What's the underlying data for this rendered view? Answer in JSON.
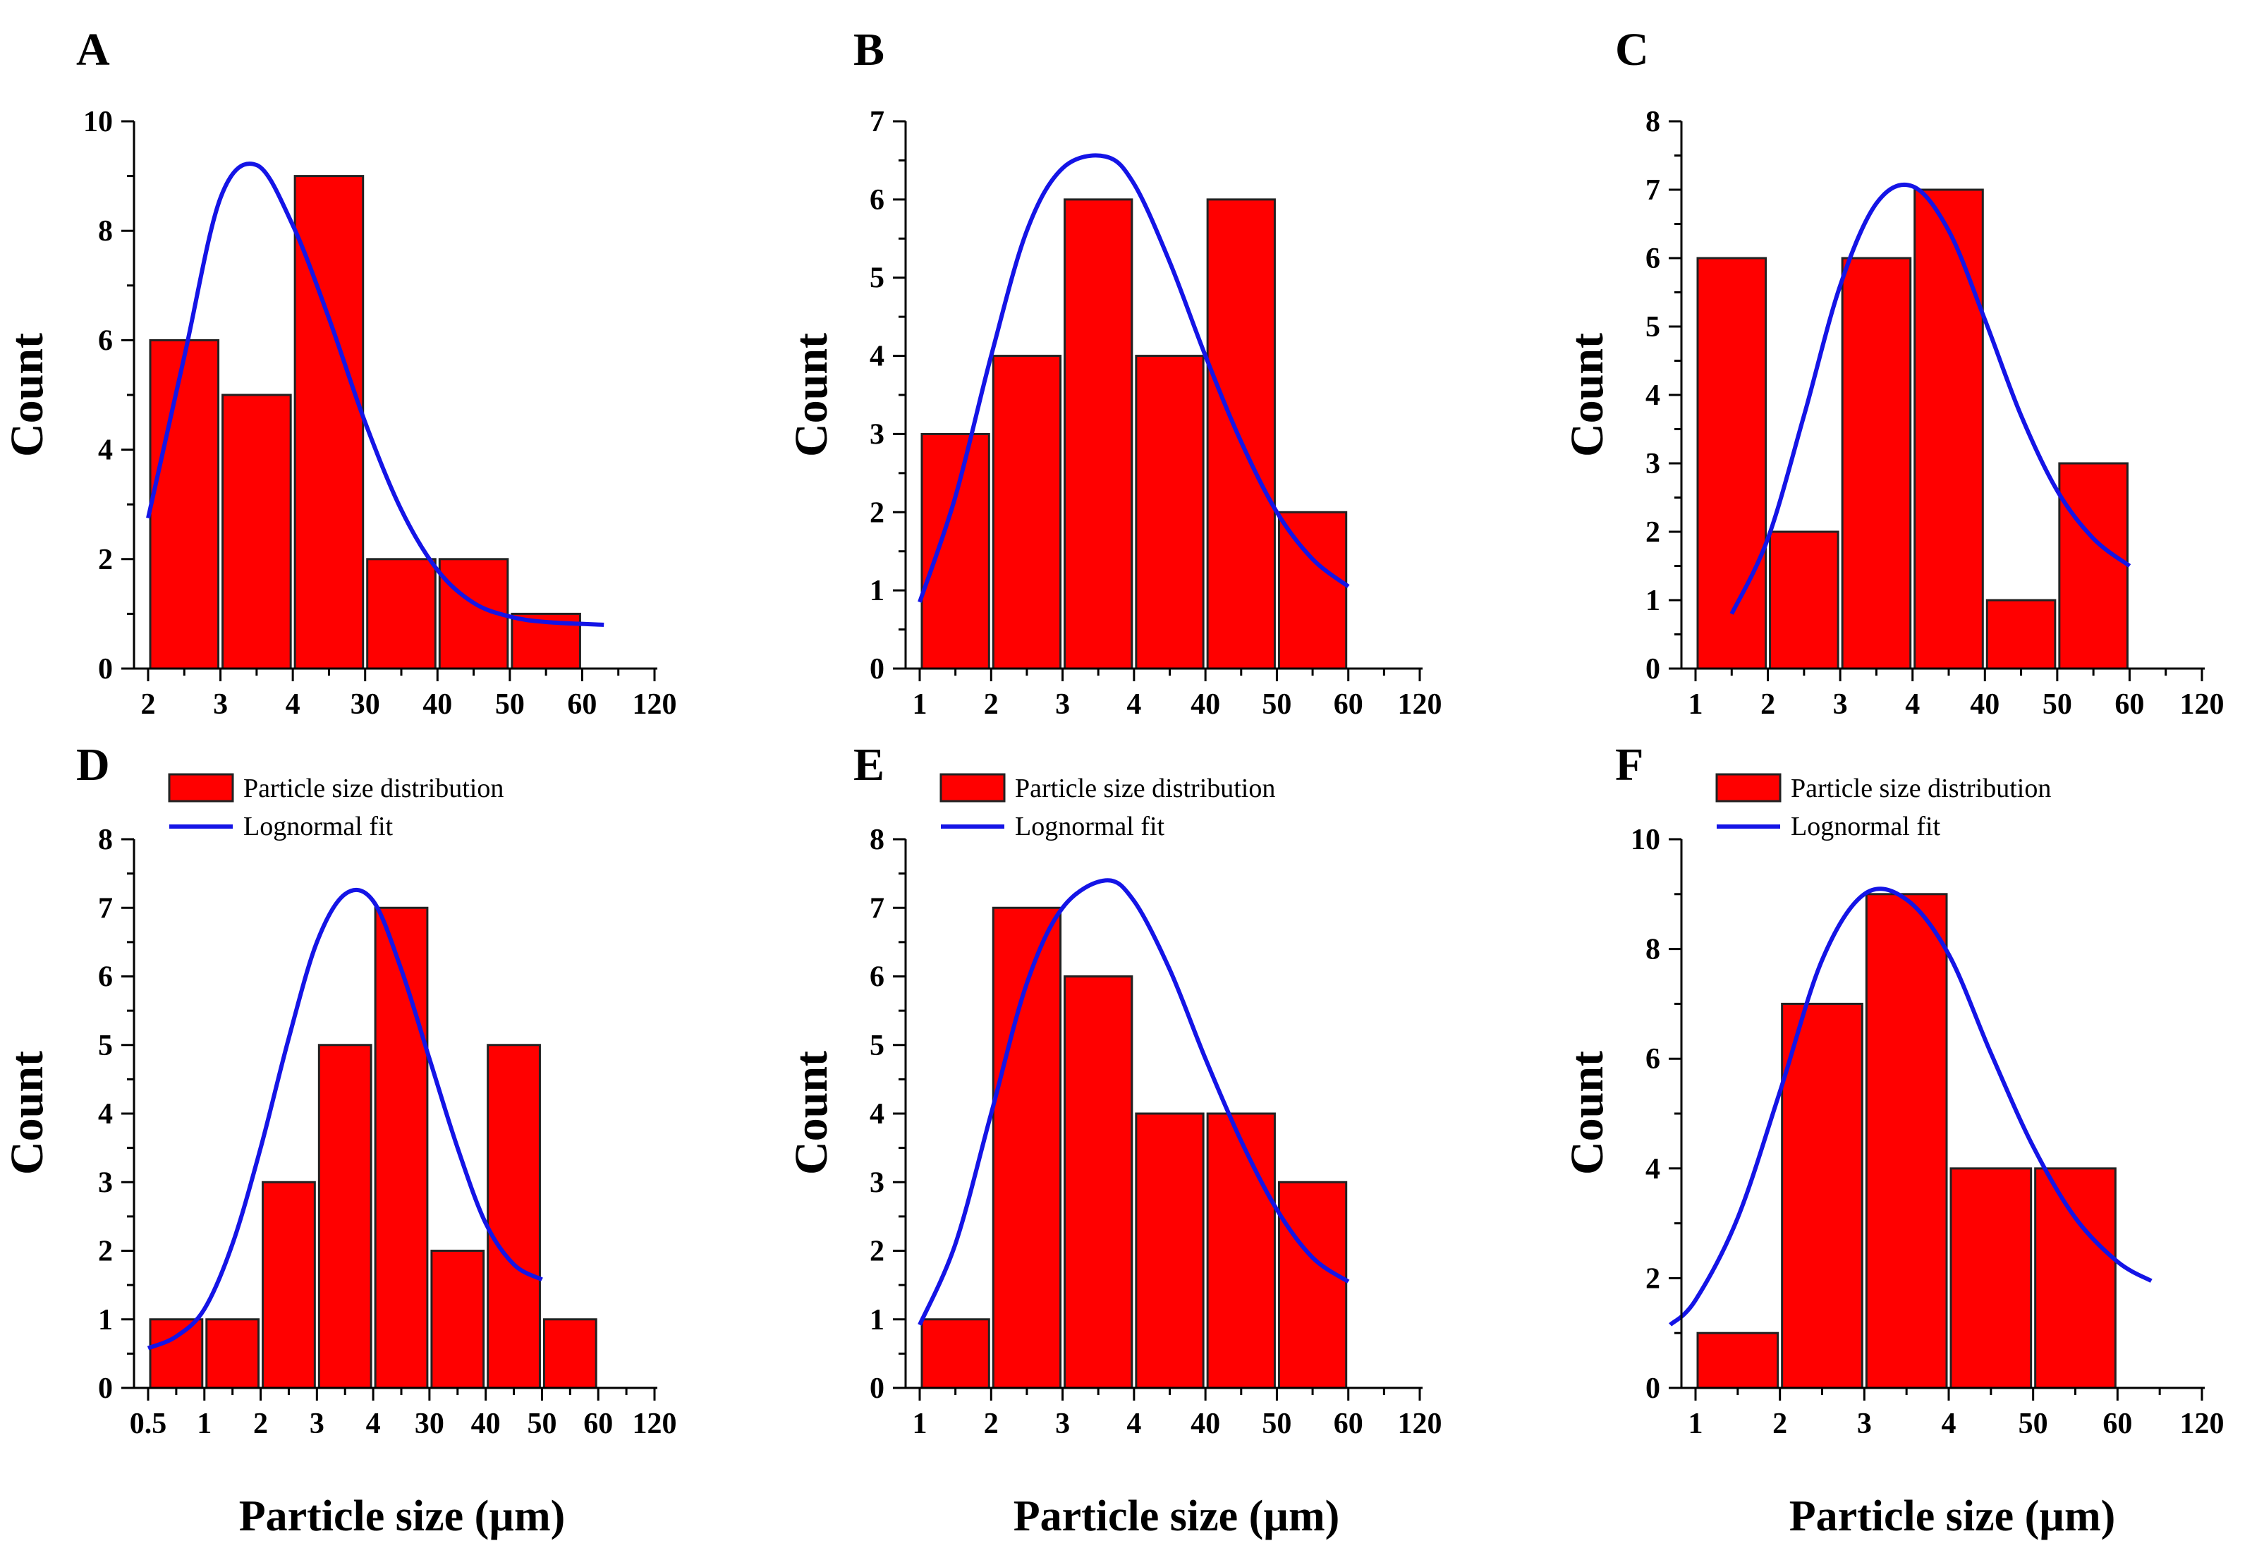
{
  "figure": {
    "xlabel": "Particle size (µm)",
    "ylabel": "Count",
    "legend": {
      "bar_label": "Particle size distribution",
      "line_label": "Lognormal fit"
    },
    "colors": {
      "bar": "#ff0000",
      "bar_edge": "#222222",
      "fit": "#1414e6",
      "axis": "#000000"
    }
  },
  "chart_data": [
    {
      "panel": "A",
      "type": "bar",
      "ylim": [
        0,
        10
      ],
      "yticks": [
        0,
        2,
        4,
        6,
        8,
        10
      ],
      "yminor_step": 1,
      "xticks": [
        "2",
        "3",
        "4",
        "30",
        "40",
        "50",
        "60",
        "120"
      ],
      "values": [
        6,
        5,
        9,
        2,
        2,
        1
      ],
      "fit": [
        [
          0.0,
          2.75
        ],
        [
          0.5,
          5.7
        ],
        [
          1.0,
          8.6
        ],
        [
          1.5,
          9.2
        ],
        [
          2.0,
          8.1
        ],
        [
          2.5,
          6.4
        ],
        [
          3.0,
          4.5
        ],
        [
          3.5,
          2.9
        ],
        [
          4.0,
          1.8
        ],
        [
          4.5,
          1.2
        ],
        [
          5.0,
          0.95
        ],
        [
          5.5,
          0.85
        ],
        [
          6.3,
          0.8
        ]
      ],
      "legend": false
    },
    {
      "panel": "B",
      "type": "bar",
      "ylim": [
        0,
        7
      ],
      "yticks": [
        0,
        1,
        2,
        3,
        4,
        5,
        6,
        7
      ],
      "yminor_step": 0.5,
      "xticks": [
        "1",
        "2",
        "3",
        "4",
        "40",
        "50",
        "60",
        "120"
      ],
      "values": [
        3,
        4,
        6,
        4,
        6,
        2
      ],
      "fit": [
        [
          0.0,
          0.85
        ],
        [
          0.5,
          2.2
        ],
        [
          1.0,
          4.0
        ],
        [
          1.5,
          5.6
        ],
        [
          2.0,
          6.4
        ],
        [
          2.6,
          6.55
        ],
        [
          3.0,
          6.2
        ],
        [
          3.5,
          5.2
        ],
        [
          4.0,
          4.0
        ],
        [
          4.5,
          2.9
        ],
        [
          5.0,
          2.0
        ],
        [
          5.5,
          1.4
        ],
        [
          6.0,
          1.05
        ]
      ],
      "legend": false
    },
    {
      "panel": "C",
      "type": "bar",
      "ylim": [
        0,
        8
      ],
      "yticks": [
        0,
        1,
        2,
        3,
        4,
        5,
        6,
        7,
        8
      ],
      "yminor_step": 0.5,
      "xticks": [
        "1",
        "2",
        "3",
        "4",
        "40",
        "50",
        "60",
        "120"
      ],
      "values": [
        6,
        2,
        6,
        7,
        1,
        3
      ],
      "fit": [
        [
          0.5,
          0.8
        ],
        [
          1.0,
          1.9
        ],
        [
          1.5,
          3.7
        ],
        [
          2.0,
          5.6
        ],
        [
          2.5,
          6.8
        ],
        [
          3.0,
          7.05
        ],
        [
          3.5,
          6.4
        ],
        [
          4.0,
          5.1
        ],
        [
          4.5,
          3.7
        ],
        [
          5.0,
          2.6
        ],
        [
          5.5,
          1.9
        ],
        [
          6.0,
          1.5
        ]
      ],
      "legend": false
    },
    {
      "panel": "D",
      "type": "bar",
      "ylim": [
        0,
        8
      ],
      "yticks": [
        0,
        1,
        2,
        3,
        4,
        5,
        6,
        7,
        8
      ],
      "yminor_step": 0.5,
      "xticks": [
        "0.5",
        "1",
        "2",
        "3",
        "4",
        "30",
        "40",
        "50",
        "60",
        "120"
      ],
      "values": [
        1,
        1,
        3,
        5,
        7,
        2,
        5,
        1
      ],
      "fit": [
        [
          0.0,
          0.58
        ],
        [
          0.5,
          0.75
        ],
        [
          1.0,
          1.15
        ],
        [
          1.5,
          2.1
        ],
        [
          2.0,
          3.5
        ],
        [
          2.5,
          5.1
        ],
        [
          3.0,
          6.5
        ],
        [
          3.5,
          7.2
        ],
        [
          4.0,
          7.1
        ],
        [
          4.5,
          6.1
        ],
        [
          5.0,
          4.8
        ],
        [
          5.5,
          3.5
        ],
        [
          6.0,
          2.4
        ],
        [
          6.5,
          1.8
        ],
        [
          7.0,
          1.58
        ]
      ],
      "legend": true
    },
    {
      "panel": "E",
      "type": "bar",
      "ylim": [
        0,
        8
      ],
      "yticks": [
        0,
        1,
        2,
        3,
        4,
        5,
        6,
        7,
        8
      ],
      "yminor_step": 0.5,
      "xticks": [
        "1",
        "2",
        "3",
        "4",
        "40",
        "50",
        "60",
        "120"
      ],
      "values": [
        1,
        7,
        6,
        4,
        4,
        3
      ],
      "fit": [
        [
          0.0,
          0.92
        ],
        [
          0.5,
          2.1
        ],
        [
          1.0,
          4.0
        ],
        [
          1.5,
          5.9
        ],
        [
          2.0,
          7.0
        ],
        [
          2.6,
          7.4
        ],
        [
          3.0,
          7.1
        ],
        [
          3.5,
          6.1
        ],
        [
          4.0,
          4.8
        ],
        [
          4.5,
          3.6
        ],
        [
          5.0,
          2.6
        ],
        [
          5.5,
          1.9
        ],
        [
          6.0,
          1.55
        ]
      ],
      "legend": true
    },
    {
      "panel": "F",
      "type": "bar",
      "ylim": [
        0,
        10
      ],
      "yticks": [
        0,
        2,
        4,
        6,
        8,
        10
      ],
      "yminor_step": 1,
      "xticks": [
        "1",
        "2",
        "3",
        "4",
        "50",
        "60",
        "120"
      ],
      "values": [
        1,
        7,
        9,
        4,
        4
      ],
      "fit": [
        [
          -0.3,
          1.15
        ],
        [
          0.0,
          1.6
        ],
        [
          0.5,
          3.1
        ],
        [
          1.0,
          5.4
        ],
        [
          1.5,
          7.8
        ],
        [
          2.0,
          9.0
        ],
        [
          2.5,
          8.9
        ],
        [
          3.0,
          7.9
        ],
        [
          3.5,
          6.1
        ],
        [
          4.0,
          4.4
        ],
        [
          4.5,
          3.1
        ],
        [
          5.0,
          2.3
        ],
        [
          5.4,
          1.95
        ]
      ],
      "legend": true
    }
  ]
}
